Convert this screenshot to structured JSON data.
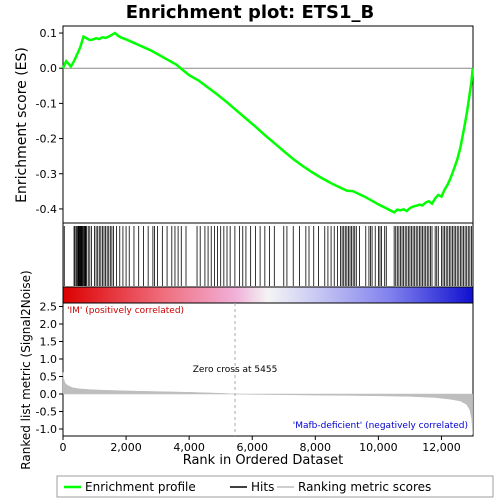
{
  "chart_data": {
    "type": "line",
    "title": "Enrichment plot: ETS1_B",
    "es_panel": {
      "ylabel": "Enrichment score (ES)",
      "ylim": [
        -0.44,
        0.12
      ],
      "yticks": [
        0.1,
        0.0,
        -0.1,
        -0.2,
        -0.3,
        -0.4
      ],
      "ytick_labels": [
        "0.1",
        "0.0",
        "-0.1",
        "-0.2",
        "-0.3",
        "-0.4"
      ],
      "series": [
        {
          "name": "Enrichment profile",
          "color": "#00ff00",
          "x": [
            0,
            100,
            250,
            350,
            450,
            550,
            650,
            750,
            850,
            950,
            1050,
            1150,
            1250,
            1350,
            1450,
            1550,
            1650,
            1750,
            1850,
            2000,
            2200,
            2400,
            2600,
            2800,
            3000,
            3200,
            3400,
            3600,
            3800,
            4000,
            4300,
            4600,
            4900,
            5200,
            5500,
            5800,
            6100,
            6400,
            6700,
            7000,
            7300,
            7600,
            7900,
            8200,
            8500,
            8800,
            9000,
            9200,
            9400,
            9600,
            9800,
            10000,
            10200,
            10400,
            10500,
            10600,
            10700,
            10800,
            10900,
            11000,
            11100,
            11200,
            11300,
            11400,
            11500,
            11600,
            11700,
            11800,
            11900,
            12000,
            12100,
            12200,
            12300,
            12400,
            12500,
            12600,
            12700,
            12800,
            12850,
            12900,
            12950,
            12990
          ],
          "y": [
            0.0,
            0.02,
            0.005,
            0.02,
            0.04,
            0.06,
            0.09,
            0.085,
            0.08,
            0.082,
            0.085,
            0.083,
            0.088,
            0.086,
            0.09,
            0.095,
            0.1,
            0.092,
            0.087,
            0.082,
            0.074,
            0.066,
            0.058,
            0.05,
            0.04,
            0.03,
            0.02,
            0.01,
            -0.005,
            -0.02,
            -0.035,
            -0.055,
            -0.075,
            -0.097,
            -0.12,
            -0.143,
            -0.166,
            -0.19,
            -0.213,
            -0.236,
            -0.258,
            -0.278,
            -0.296,
            -0.312,
            -0.327,
            -0.34,
            -0.348,
            -0.35,
            -0.358,
            -0.367,
            -0.377,
            -0.387,
            -0.396,
            -0.405,
            -0.41,
            -0.402,
            -0.404,
            -0.401,
            -0.406,
            -0.398,
            -0.393,
            -0.391,
            -0.388,
            -0.39,
            -0.382,
            -0.378,
            -0.385,
            -0.37,
            -0.36,
            -0.365,
            -0.345,
            -0.33,
            -0.31,
            -0.285,
            -0.26,
            -0.225,
            -0.18,
            -0.13,
            -0.1,
            -0.07,
            -0.04,
            0.0
          ]
        }
      ]
    },
    "hits": {
      "name": "Hits",
      "ranks": [
        40,
        350,
        380,
        420,
        450,
        480,
        500,
        520,
        540,
        560,
        580,
        600,
        620,
        650,
        680,
        700,
        720,
        750,
        800,
        850,
        900,
        1000,
        1050,
        1100,
        1150,
        1200,
        1250,
        1300,
        1350,
        1400,
        1450,
        1500,
        1550,
        1600,
        1700,
        1800,
        1900,
        2000,
        2100,
        2250,
        2400,
        2550,
        2700,
        2850,
        2900,
        3000,
        3150,
        3300,
        3450,
        3550,
        3650,
        3750,
        3900,
        4250,
        4350,
        4500,
        4600,
        4700,
        4800,
        4900,
        5000,
        5100,
        5200,
        5300,
        5450,
        5600,
        5700,
        5800,
        5950,
        6100,
        6250,
        6400,
        6550,
        6700,
        7000,
        7100,
        7300,
        7500,
        7700,
        7800,
        7950,
        8100,
        8300,
        8400,
        8500,
        8600,
        8700,
        8800,
        8850,
        8900,
        8950,
        9000,
        9050,
        9100,
        9150,
        9200,
        9250,
        9300,
        9400,
        9600,
        9700,
        9750,
        9800,
        9900,
        10000,
        10050,
        10100,
        10200,
        10250,
        10500,
        10550,
        10600,
        10650,
        10700,
        10750,
        10800,
        10850,
        10900,
        10950,
        11000,
        11050,
        11100,
        11150,
        11200,
        11250,
        11300,
        11350,
        11400,
        11450,
        11500,
        11550,
        11600,
        11650,
        11700,
        11800,
        11850,
        11900,
        12000,
        12050,
        12100,
        12150,
        12200,
        12250,
        12300,
        12350,
        12400,
        12450,
        12500,
        12550,
        12600,
        12650,
        12700,
        12750,
        12800,
        12850,
        12900,
        12950
      ]
    },
    "ranking_metric": {
      "name": "Ranking metric scores",
      "ylabel": "Ranked list metric (Signal2Noise)",
      "ylim": [
        -1.2,
        2.6
      ],
      "yticks": [
        2.5,
        2.0,
        1.5,
        1.0,
        0.5,
        0.0,
        -0.5,
        -1.0
      ],
      "ytick_labels": [
        "2.5",
        "2.0",
        "1.5",
        "1.0",
        "0.5",
        "0.0",
        "-0.5",
        "-1.0"
      ],
      "x": [
        0,
        20,
        60,
        120,
        200,
        300,
        500,
        800,
        1200,
        2000,
        3000,
        4000,
        5000,
        5455,
        6000,
        7000,
        8000,
        9000,
        10000,
        11000,
        11800,
        12300,
        12600,
        12800,
        12900,
        12960,
        12990
      ],
      "y": [
        0.62,
        0.45,
        0.32,
        0.26,
        0.22,
        0.18,
        0.15,
        0.13,
        0.11,
        0.09,
        0.07,
        0.05,
        0.02,
        0.0,
        -0.01,
        -0.02,
        -0.03,
        -0.04,
        -0.05,
        -0.07,
        -0.1,
        -0.15,
        -0.2,
        -0.3,
        -0.45,
        -0.7,
        -1.15
      ]
    },
    "xlabel": "Rank in Ordered Dataset",
    "xlim": [
      0,
      13000
    ],
    "xticks": [
      0,
      2000,
      4000,
      6000,
      8000,
      10000,
      12000
    ],
    "xtick_labels": [
      "0",
      "2,000",
      "4,000",
      "6,000",
      "8,000",
      "10,000",
      "12,000"
    ],
    "zero_cross_text": "Zero cross at 5455",
    "zero_cross_rank": 5455,
    "positive_label": "'IM' (positively correlated)",
    "negative_label": "'Mafb-deficient' (negatively correlated)",
    "legend": [
      "Enrichment profile",
      "Hits",
      "Ranking metric scores"
    ],
    "colors": {
      "profile": "#00ff00",
      "positive": "#d40000",
      "negative": "#0000d4",
      "metric_fill": "#bebebe",
      "zero_line": "#bebebe",
      "positive_text": "#cc0000",
      "negative_text": "#0000cc"
    }
  }
}
